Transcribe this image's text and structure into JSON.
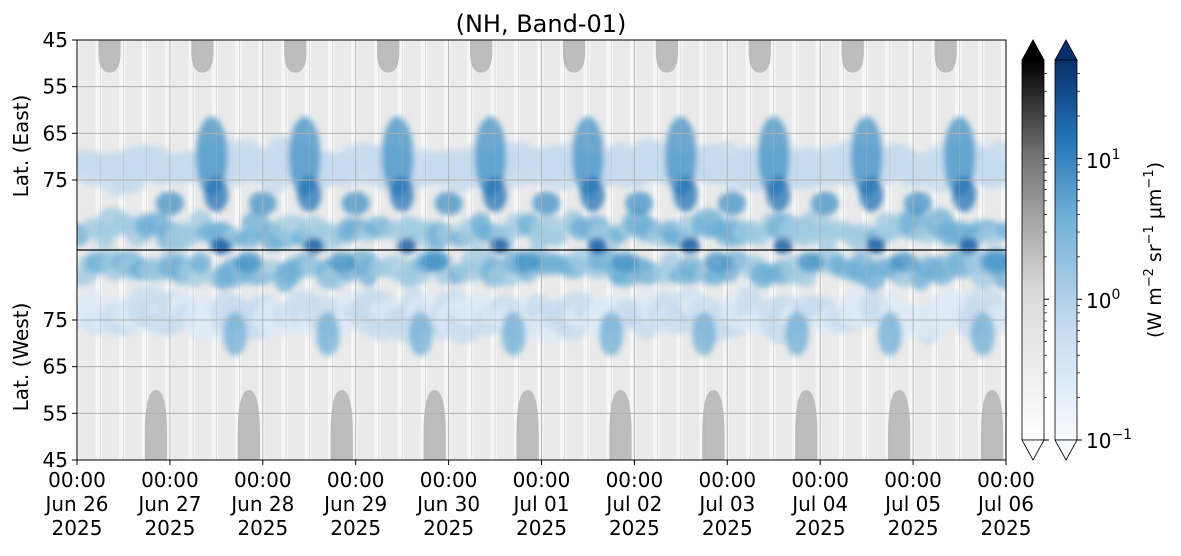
{
  "chart_data": {
    "type": "heatmap",
    "title": "(NH, Band-01)",
    "ylabel_top": "Lat. (East)",
    "ylabel_bottom": "Lat. (West)",
    "yticks_top": [
      "45",
      "55",
      "65",
      "75"
    ],
    "yticks_bottom": [
      "75",
      "65",
      "55",
      "45"
    ],
    "xticks": [
      {
        "time": "00:00",
        "date": "Jun 26",
        "year": "2025"
      },
      {
        "time": "00:00",
        "date": "Jun 27",
        "year": "2025"
      },
      {
        "time": "00:00",
        "date": "Jun 28",
        "year": "2025"
      },
      {
        "time": "00:00",
        "date": "Jun 29",
        "year": "2025"
      },
      {
        "time": "00:00",
        "date": "Jun 30",
        "year": "2025"
      },
      {
        "time": "00:00",
        "date": "Jul 01",
        "year": "2025"
      },
      {
        "time": "00:00",
        "date": "Jul 02",
        "year": "2025"
      },
      {
        "time": "00:00",
        "date": "Jul 03",
        "year": "2025"
      },
      {
        "time": "00:00",
        "date": "Jul 04",
        "year": "2025"
      },
      {
        "time": "00:00",
        "date": "Jul 05",
        "year": "2025"
      },
      {
        "time": "00:00",
        "date": "Jul 06",
        "year": "2025"
      }
    ],
    "x_range": [
      "2025-06-26 00:00",
      "2025-07-06 00:00"
    ],
    "colorbar_gray": {
      "scale": "log",
      "range": [
        0.1,
        50
      ],
      "extend": "both"
    },
    "colorbar_blue": {
      "scale": "log",
      "range": [
        0.1,
        50
      ],
      "extend": "both",
      "tick_labels": [
        {
          "base": "10",
          "exp": "1"
        },
        {
          "base": "10",
          "exp": "0"
        },
        {
          "base": "10",
          "exp": "−1"
        }
      ],
      "label_parts": {
        "a": "(W m",
        "a_exp": "−2",
        "b": " sr",
        "b_exp": "−1",
        "c": " μm",
        "c_exp": "−1",
        "d": ")"
      }
    },
    "grid": true,
    "nh_peak_times_day": [
      1.45,
      2.45,
      3.45,
      4.45,
      5.5,
      6.5,
      7.5,
      8.5,
      9.5
    ],
    "daylight_lobe_centers_day": {
      "top": [
        0.35,
        1.35,
        2.35,
        3.35,
        4.35,
        5.35,
        6.35,
        7.35,
        8.35,
        9.35
      ],
      "bottom": [
        0.85,
        1.85,
        2.85,
        3.85,
        4.85,
        5.85,
        6.85,
        7.85,
        8.85,
        9.85
      ]
    },
    "colors": {
      "blue_high": "#08306b",
      "blue_mid": "#2171b5",
      "blue_low": "#c6dbef",
      "gray_lobe": "#bdbdbd"
    }
  }
}
